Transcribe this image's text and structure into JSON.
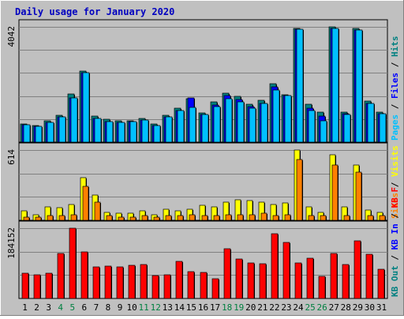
{
  "chart_data": {
    "type": "bar",
    "title": "Daily usage for January 2020",
    "categories": [
      "1",
      "2",
      "3",
      "4",
      "5",
      "6",
      "7",
      "8",
      "9",
      "10",
      "11",
      "12",
      "13",
      "14",
      "15",
      "16",
      "17",
      "18",
      "19",
      "20",
      "21",
      "22",
      "23",
      "24",
      "25",
      "26",
      "27",
      "28",
      "29",
      "30",
      "31"
    ],
    "weekend_days": [
      4,
      5,
      11,
      12,
      18,
      19,
      25,
      26
    ],
    "panels": [
      {
        "name": "hits-files-pages",
        "ymax_label": "4042",
        "ymax": 4042,
        "right_labels": [
          {
            "text": "Hits",
            "color": "#008080"
          },
          {
            "text": "Files",
            "color": "#0000FF"
          },
          {
            "text": "Pages",
            "color": "#00C0FF"
          }
        ],
        "series": [
          {
            "name": "Hits",
            "color": "#008080",
            "values": [
              650,
              590,
              740,
              950,
              1680,
              2500,
              900,
              790,
              750,
              760,
              820,
              630,
              950,
              1200,
              1530,
              1020,
              1400,
              1710,
              1600,
              1330,
              1470,
              2060,
              1660,
              3990,
              1330,
              1050,
              4040,
              1060,
              3980,
              1430,
              1050
            ]
          },
          {
            "name": "Files",
            "color": "#0000FF",
            "values": [
              600,
              550,
              680,
              880,
              1560,
              2440,
              840,
              730,
              700,
              710,
              770,
              580,
              880,
              1100,
              1560,
              960,
              1290,
              1620,
              1490,
              1250,
              1360,
              1930,
              1620,
              3960,
              1190,
              900,
              4000,
              1000,
              3920,
              1370,
              1010
            ]
          },
          {
            "name": "Pages",
            "color": "#00C0FF",
            "values": [
              600,
              550,
              680,
              880,
              1560,
              2440,
              840,
              730,
              700,
              710,
              770,
              580,
              880,
              1100,
              1210,
              960,
              1250,
              1530,
              1420,
              1200,
              1360,
              1840,
              1620,
              3960,
              1100,
              760,
              4000,
              970,
              3920,
              1370,
              1010
            ]
          }
        ]
      },
      {
        "name": "visits-sites",
        "ymax_label": "614",
        "ymax": 614,
        "right_labels": [
          {
            "text": "Visits",
            "color": "#FFFF00"
          },
          {
            "text": "Sites",
            "color": "#FF8000"
          }
        ],
        "series": [
          {
            "name": "Visits",
            "color": "#FFFF00",
            "values": [
              80,
              50,
              120,
              110,
              140,
              370,
              220,
              70,
              60,
              60,
              80,
              50,
              100,
              80,
              100,
              130,
              120,
              160,
              180,
              170,
              160,
              140,
              150,
              614,
              120,
              70,
              570,
              120,
              480,
              90,
              70
            ]
          },
          {
            "name": "Sites",
            "color": "#FF8000",
            "values": [
              30,
              30,
              40,
              40,
              50,
              300,
              160,
              40,
              30,
              30,
              40,
              30,
              40,
              40,
              50,
              40,
              40,
              50,
              50,
              50,
              60,
              40,
              50,
              530,
              40,
              40,
              480,
              40,
              420,
              40,
              40
            ]
          }
        ]
      },
      {
        "name": "kbytes",
        "ymax_label": "184152",
        "ymax": 184152,
        "right_labels": [
          {
            "text": "KB F",
            "color": "#FF0000"
          },
          {
            "text": "KB In",
            "color": "#0000FF"
          },
          {
            "text": "KB Out",
            "color": "#008080"
          }
        ],
        "series": [
          {
            "name": "KB F",
            "color": "#FF0000",
            "values": [
              67000,
              63000,
              67000,
              117000,
              184152,
              123000,
              82000,
              84000,
              83000,
              87000,
              88000,
              61000,
              63000,
              97000,
              71000,
              69000,
              51000,
              130000,
              104000,
              93000,
              92000,
              169000,
              147000,
              94000,
              105000,
              58000,
              118000,
              88000,
              152000,
              116000,
              76000
            ]
          }
        ]
      }
    ]
  }
}
